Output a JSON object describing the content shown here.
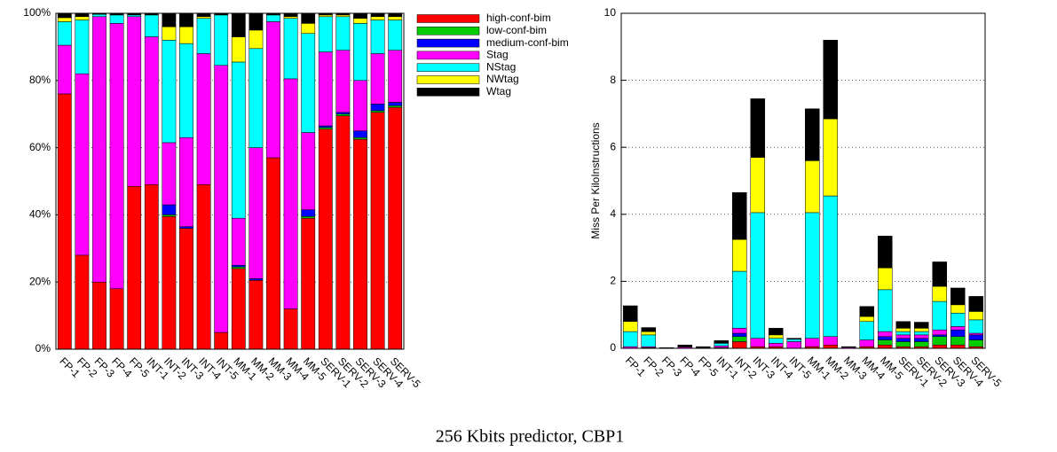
{
  "chart_data": [
    {
      "type": "bar",
      "stacked": true,
      "legend": "right",
      "grid": true,
      "categories": [
        "FP-1",
        "FP-2",
        "FP-3",
        "FP-4",
        "FP-5",
        "INT-1",
        "INT-2",
        "INT-3",
        "INT-4",
        "INT-5",
        "MM-1",
        "MM-2",
        "MM-3",
        "MM-4",
        "MM-5",
        "SERV-1",
        "SERV-2",
        "SERV-3",
        "SERV-4",
        "SERV-5"
      ],
      "ylim": [
        0,
        100
      ],
      "yticks": [
        {
          "value": 0,
          "label": "0%"
        },
        {
          "value": 20,
          "label": "20%"
        },
        {
          "value": 40,
          "label": "40%"
        },
        {
          "value": 60,
          "label": "60%"
        },
        {
          "value": 80,
          "label": "80%"
        },
        {
          "value": 100,
          "label": "100%"
        }
      ],
      "series": [
        {
          "name": "high-conf-bim",
          "color": "#ff0000",
          "values": [
            76,
            28,
            20,
            18,
            48.5,
            49,
            39.5,
            36,
            49,
            5,
            24,
            20.5,
            57,
            12,
            39,
            65.5,
            69.5,
            62.5,
            70.5,
            72
          ]
        },
        {
          "name": "low-conf-bim",
          "color": "#00cc00",
          "values": [
            0,
            0,
            0,
            0,
            0,
            0,
            0.5,
            0,
            0,
            0,
            0.5,
            0,
            0,
            0,
            0.5,
            0.5,
            0.5,
            0.5,
            0.5,
            0.5
          ]
        },
        {
          "name": "medium-conf-bim",
          "color": "#0000ff",
          "values": [
            0,
            0,
            0,
            0,
            0,
            0,
            3,
            0.5,
            0,
            0,
            0.5,
            0.5,
            0,
            0,
            2,
            0.5,
            0.5,
            2,
            2,
            1
          ]
        },
        {
          "name": "Stag",
          "color": "#ff00ff",
          "values": [
            14.5,
            54,
            79,
            79,
            50.5,
            44,
            18.5,
            26.5,
            39,
            79.5,
            14,
            39,
            40.5,
            68.5,
            23,
            22,
            18.5,
            15,
            15,
            15.5
          ]
        },
        {
          "name": "NStag",
          "color": "#00ffff",
          "values": [
            7,
            16,
            0.7,
            2.5,
            0.5,
            6.5,
            30.5,
            28,
            10.5,
            15,
            46.5,
            29.5,
            2,
            18,
            29.5,
            10.5,
            10,
            17,
            10,
            9
          ]
        },
        {
          "name": "NWtag",
          "color": "#ffff00",
          "values": [
            1.2,
            1,
            0,
            0,
            0,
            0,
            4,
            5,
            0.5,
            0,
            7.5,
            5.5,
            0,
            0.5,
            3,
            0.5,
            0.5,
            1.5,
            1,
            1
          ]
        },
        {
          "name": "Wtag",
          "color": "#000000",
          "values": [
            1.3,
            1,
            0.3,
            0.5,
            0.5,
            0.5,
            4,
            4,
            1,
            0.5,
            7,
            5,
            0.5,
            1,
            3,
            0.5,
            0.5,
            1.5,
            1,
            1
          ]
        }
      ]
    },
    {
      "type": "bar",
      "stacked": true,
      "grid": true,
      "y_label": "Miss Per KiloInstructions",
      "categories": [
        "FP-1",
        "FP-2",
        "FP-3",
        "FP-4",
        "FP-5",
        "INT-1",
        "INT-2",
        "INT-3",
        "INT-4",
        "INT-5",
        "MM-1",
        "MM-2",
        "MM-3",
        "MM-4",
        "MM-5",
        "SERV-1",
        "SERV-2",
        "SERV-3",
        "SERV-4",
        "SERV-5"
      ],
      "ylim": [
        0,
        10
      ],
      "yticks": [
        0,
        2,
        4,
        6,
        8,
        10
      ],
      "series": [
        {
          "color": "#ff0000",
          "values": [
            0,
            0.02,
            0,
            0,
            0,
            0.02,
            0.2,
            0.05,
            0.05,
            0,
            0.05,
            0.1,
            0,
            0.05,
            0.1,
            0.05,
            0.05,
            0.1,
            0.1,
            0.05
          ]
        },
        {
          "color": "#00cc00",
          "values": [
            0,
            0,
            0,
            0,
            0,
            0,
            0.15,
            0,
            0,
            0,
            0,
            0,
            0,
            0,
            0.15,
            0.15,
            0.15,
            0.25,
            0.25,
            0.2
          ]
        },
        {
          "color": "#0000ff",
          "values": [
            0,
            0,
            0,
            0,
            0,
            0,
            0.1,
            0,
            0,
            0,
            0,
            0,
            0,
            0,
            0.1,
            0.1,
            0.1,
            0.05,
            0.2,
            0.15
          ]
        },
        {
          "color": "#ff00ff",
          "values": [
            0.05,
            0.03,
            0.01,
            0.04,
            0.02,
            0.05,
            0.15,
            0.25,
            0.1,
            0.2,
            0.25,
            0.25,
            0.03,
            0.2,
            0.15,
            0.1,
            0.1,
            0.15,
            0.1,
            0.05
          ]
        },
        {
          "color": "#00ffff",
          "values": [
            0.45,
            0.35,
            0,
            0,
            0.01,
            0.08,
            1.7,
            3.75,
            0.15,
            0.07,
            3.75,
            4.2,
            0,
            0.55,
            1.25,
            0.1,
            0.1,
            0.85,
            0.4,
            0.4
          ]
        },
        {
          "color": "#ffff00",
          "values": [
            0.3,
            0.1,
            0,
            0,
            0,
            0,
            0.95,
            1.65,
            0.1,
            0,
            1.55,
            2.3,
            0,
            0.15,
            0.65,
            0.1,
            0.1,
            0.45,
            0.25,
            0.25
          ]
        },
        {
          "color": "#000000",
          "values": [
            0.47,
            0.12,
            0.01,
            0.06,
            0.02,
            0.08,
            1.4,
            1.75,
            0.2,
            0.03,
            1.55,
            2.35,
            0.02,
            0.3,
            0.95,
            0.2,
            0.18,
            0.73,
            0.5,
            0.45
          ]
        }
      ]
    }
  ],
  "caption": "256 Kbits predictor, CBP1"
}
